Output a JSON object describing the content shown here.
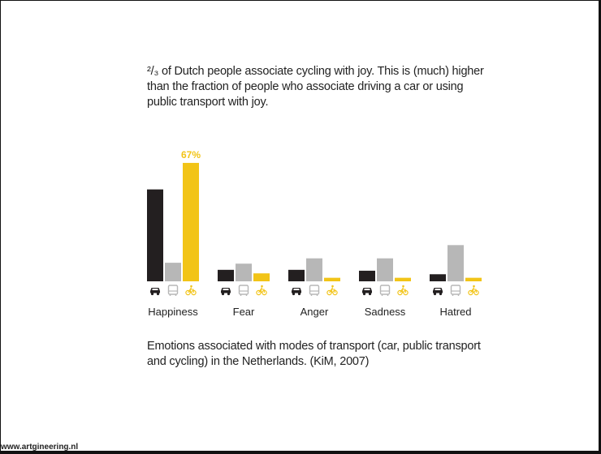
{
  "headline_lines": [
    "²/₃ of Dutch people associate cycling with joy. This is (much) higher",
    "than the fraction of people who associate driving a car or using",
    "public transport with joy."
  ],
  "caption_lines": [
    "Emotions associated with modes of transport (car, public transport",
    "and cycling) in the Netherlands. (KiM, 2007)"
  ],
  "footer": "www.artgineering.nl",
  "colors": {
    "car": "#231f20",
    "public_transport": "#b7b7b7",
    "cycling": "#f2c417"
  },
  "icons": [
    "car-icon",
    "bus-icon",
    "bicycle-icon"
  ],
  "chart_data": {
    "type": "bar",
    "categories": [
      "Happiness",
      "Fear",
      "Anger",
      "Sadness",
      "Hatred"
    ],
    "series": [
      {
        "key": "car",
        "values": [
          52,
          6.5,
          6.5,
          6,
          4
        ]
      },
      {
        "key": "public_transport",
        "values": [
          10.5,
          10,
          13,
          13,
          20.5
        ]
      },
      {
        "key": "cycling",
        "values": [
          67,
          4.5,
          2,
          2,
          2
        ]
      }
    ],
    "value_labels": [
      {
        "series": "cycling",
        "category": "Happiness",
        "text": "67%"
      }
    ],
    "ylim": [
      0,
      70
    ],
    "grid": false,
    "legend": "icons below each bar group"
  }
}
